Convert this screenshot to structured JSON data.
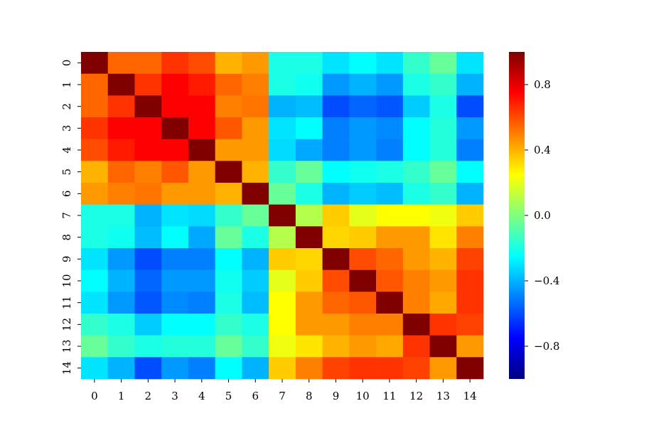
{
  "chart_data": {
    "type": "heatmap",
    "title": "",
    "xlabel": "",
    "ylabel": "",
    "x_categories": [
      "0",
      "1",
      "2",
      "3",
      "4",
      "5",
      "6",
      "7",
      "8",
      "9",
      "10",
      "11",
      "12",
      "13",
      "14"
    ],
    "y_categories": [
      "0",
      "1",
      "2",
      "3",
      "4",
      "5",
      "6",
      "7",
      "8",
      "9",
      "10",
      "11",
      "12",
      "13",
      "14"
    ],
    "vmin": -1.0,
    "vmax": 1.0,
    "colormap": "jet",
    "values": [
      [
        1.0,
        0.55,
        0.55,
        0.65,
        0.6,
        0.4,
        0.45,
        -0.2,
        -0.2,
        -0.3,
        -0.25,
        -0.3,
        -0.15,
        -0.05,
        -0.3
      ],
      [
        0.55,
        1.0,
        0.65,
        0.75,
        0.7,
        0.55,
        0.5,
        -0.2,
        -0.22,
        -0.45,
        -0.4,
        -0.45,
        -0.2,
        -0.15,
        -0.4
      ],
      [
        0.55,
        0.65,
        1.0,
        0.75,
        0.75,
        0.5,
        0.52,
        -0.4,
        -0.38,
        -0.6,
        -0.55,
        -0.58,
        -0.35,
        -0.2,
        -0.6
      ],
      [
        0.65,
        0.75,
        0.75,
        1.0,
        0.75,
        0.58,
        0.45,
        -0.3,
        -0.25,
        -0.5,
        -0.45,
        -0.48,
        -0.25,
        -0.18,
        -0.45
      ],
      [
        0.6,
        0.7,
        0.75,
        0.75,
        1.0,
        0.45,
        0.45,
        -0.32,
        -0.42,
        -0.5,
        -0.45,
        -0.5,
        -0.25,
        -0.18,
        -0.5
      ],
      [
        0.4,
        0.55,
        0.5,
        0.58,
        0.45,
        1.0,
        0.4,
        -0.15,
        -0.05,
        -0.25,
        -0.22,
        -0.2,
        -0.15,
        -0.05,
        -0.25
      ],
      [
        0.45,
        0.5,
        0.52,
        0.45,
        0.45,
        0.4,
        1.0,
        -0.05,
        -0.2,
        -0.4,
        -0.35,
        -0.38,
        -0.2,
        -0.15,
        -0.4
      ],
      [
        -0.2,
        -0.2,
        -0.4,
        -0.3,
        -0.32,
        -0.15,
        -0.05,
        1.0,
        0.1,
        0.35,
        0.2,
        0.25,
        0.25,
        0.22,
        0.35
      ],
      [
        -0.2,
        -0.22,
        -0.38,
        -0.25,
        -0.42,
        -0.05,
        -0.2,
        0.1,
        1.0,
        0.33,
        0.35,
        0.45,
        0.45,
        0.3,
        0.5
      ],
      [
        -0.3,
        -0.45,
        -0.6,
        -0.5,
        -0.5,
        -0.25,
        -0.4,
        0.35,
        0.33,
        1.0,
        0.6,
        0.55,
        0.45,
        0.4,
        0.62
      ],
      [
        -0.25,
        -0.4,
        -0.55,
        -0.45,
        -0.45,
        -0.22,
        -0.35,
        0.2,
        0.35,
        0.6,
        1.0,
        0.58,
        0.5,
        0.45,
        0.65
      ],
      [
        -0.3,
        -0.45,
        -0.58,
        -0.48,
        -0.5,
        -0.2,
        -0.38,
        0.25,
        0.45,
        0.55,
        0.58,
        1.0,
        0.5,
        0.42,
        0.65
      ],
      [
        -0.15,
        -0.2,
        -0.35,
        -0.25,
        -0.25,
        -0.15,
        -0.2,
        0.25,
        0.45,
        0.45,
        0.5,
        0.5,
        1.0,
        0.65,
        0.62
      ],
      [
        -0.05,
        -0.15,
        -0.2,
        -0.18,
        -0.18,
        -0.05,
        -0.15,
        0.22,
        0.3,
        0.4,
        0.45,
        0.42,
        0.65,
        1.0,
        0.45
      ],
      [
        -0.3,
        -0.4,
        -0.6,
        -0.45,
        -0.5,
        -0.25,
        -0.4,
        0.35,
        0.5,
        0.62,
        0.65,
        0.65,
        0.62,
        0.45,
        1.0
      ]
    ],
    "colorbar": {
      "ticks": [
        0.8,
        0.4,
        0.0,
        -0.4,
        -0.8
      ],
      "tick_labels": [
        "0.8",
        "0.4",
        "0.0",
        "−0.4",
        "−0.8"
      ]
    },
    "grid": false,
    "legend": "colorbar-right"
  }
}
